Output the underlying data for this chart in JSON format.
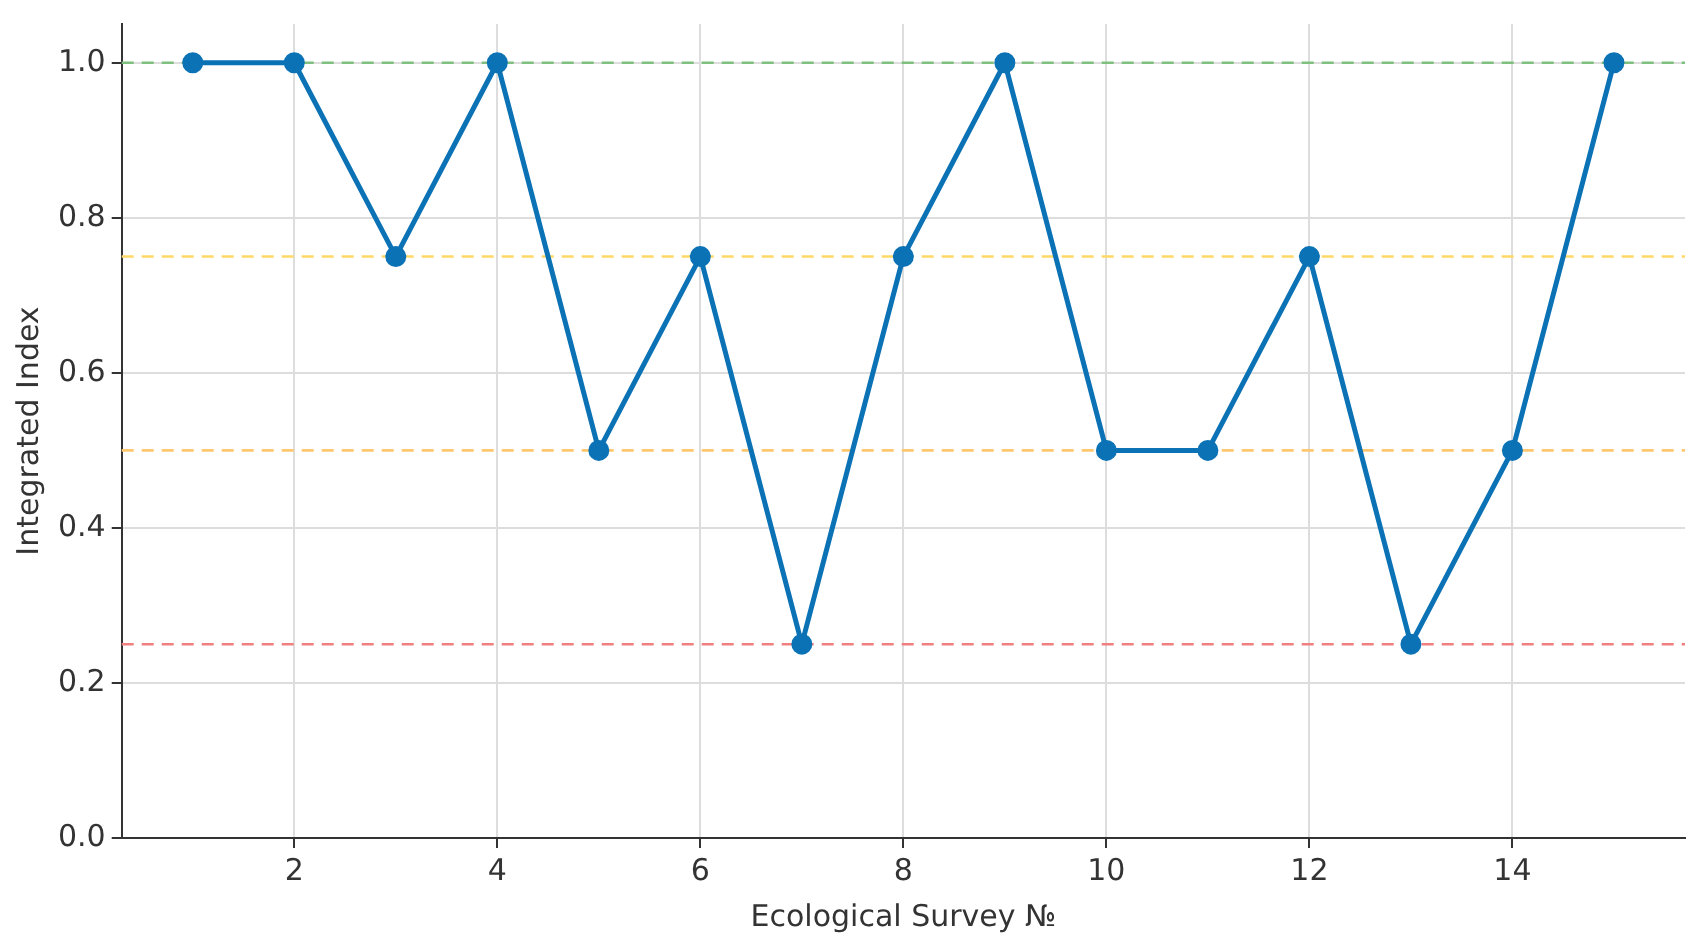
{
  "chart_data": {
    "type": "line",
    "xlabel": "Ecological Survey №",
    "ylabel": "Integrated Index",
    "x": [
      1,
      2,
      3,
      4,
      5,
      6,
      7,
      8,
      9,
      10,
      11,
      12,
      13,
      14,
      15
    ],
    "series": [
      {
        "color": "#0b72b5",
        "values": [
          1,
          1,
          0.75,
          1,
          0.5,
          0.75,
          0.25,
          0.75,
          1,
          0.5,
          0.5,
          0.75,
          0.25,
          0.5,
          1
        ]
      }
    ],
    "xlim": [
      0.3,
      15.7
    ],
    "xticks": [
      2,
      4,
      6,
      8,
      10,
      12,
      14
    ],
    "ylim": [
      0,
      1.05
    ],
    "yticks": [
      {
        "value": 0,
        "label": "0.0"
      },
      {
        "value": 0.2,
        "label": "0.2"
      },
      {
        "value": 0.4,
        "label": "0.4"
      },
      {
        "value": 0.6,
        "label": "0.6"
      },
      {
        "value": 0.8,
        "label": "0.8"
      },
      {
        "value": 1,
        "label": "1.0"
      }
    ],
    "ref_lines": [
      {
        "axis": "y",
        "value": 1,
        "color": "#7fbf7f",
        "line_style": "dashed"
      },
      {
        "axis": "y",
        "value": 0.75,
        "color": "#ffd966",
        "line_style": "dashed"
      },
      {
        "axis": "y",
        "value": 0.5,
        "color": "#ffc870",
        "line_style": "dashed"
      },
      {
        "axis": "y",
        "value": 0.25,
        "color": "#f08080",
        "line_style": "dashed"
      }
    ],
    "grid": true,
    "legend": false,
    "marker": "circle",
    "line_style": "solid"
  }
}
